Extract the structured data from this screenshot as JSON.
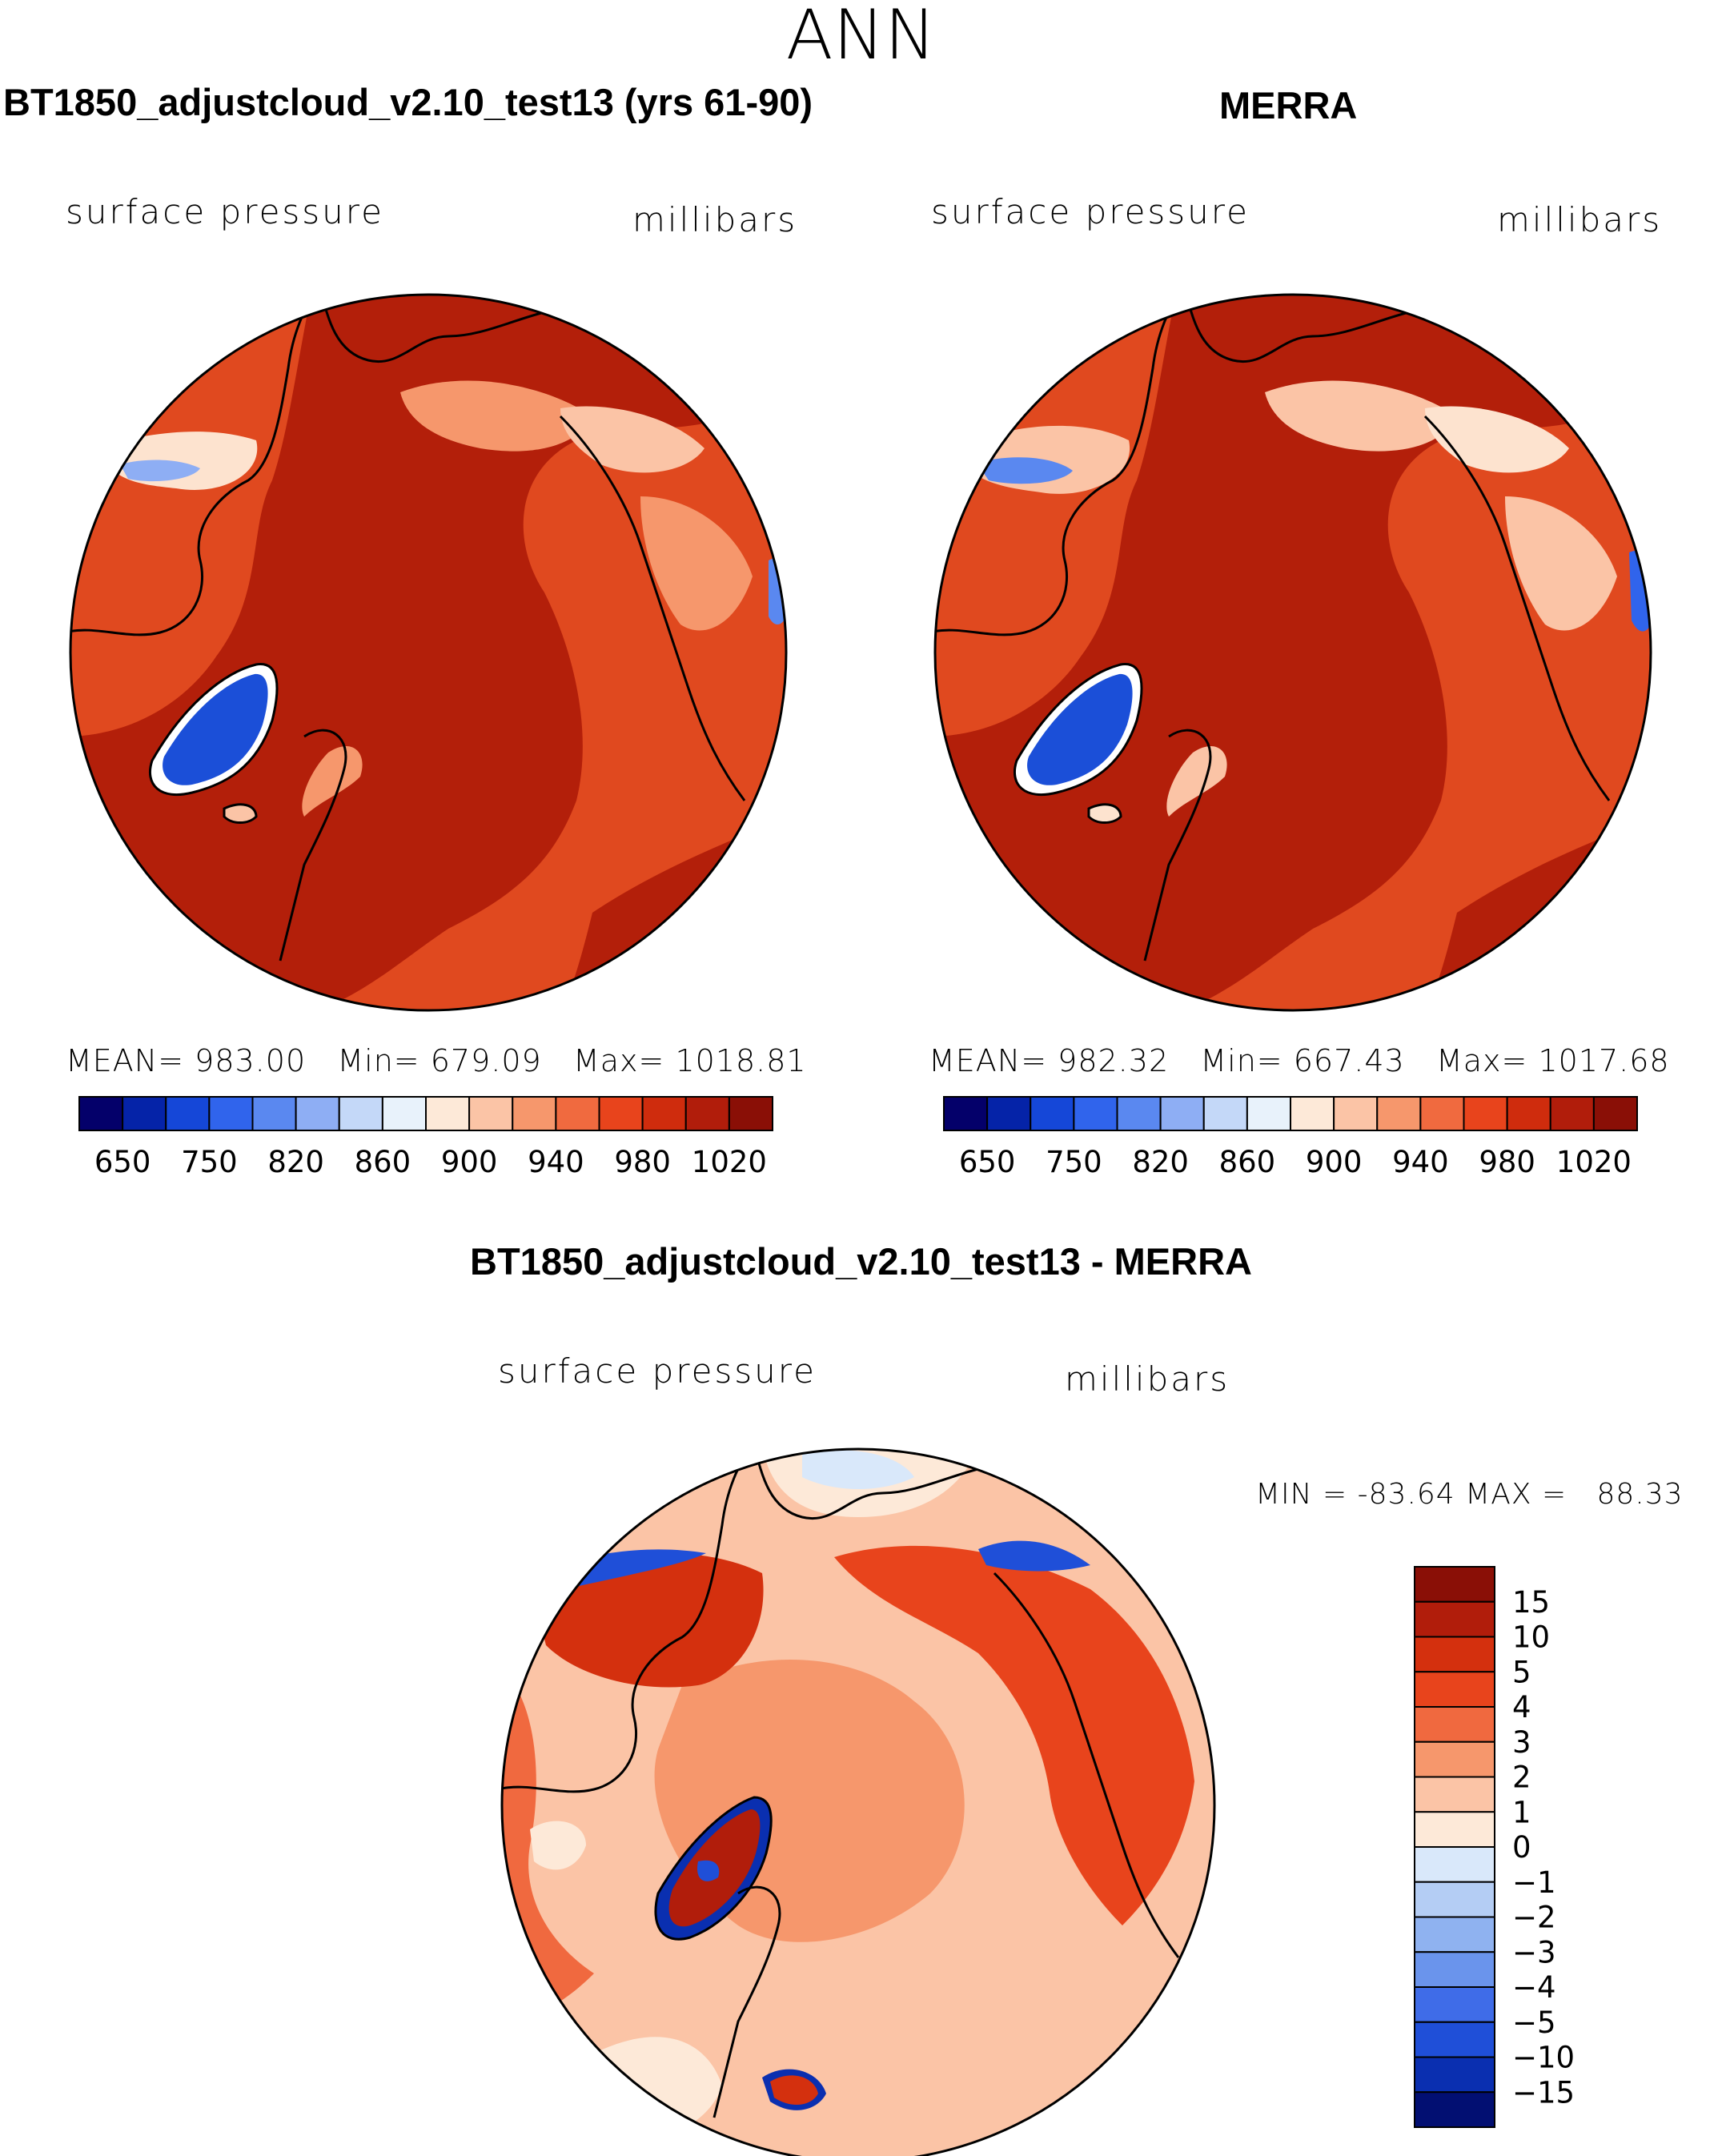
{
  "main_title": "ANN",
  "panels": [
    {
      "title": "BT1850_adjustcloud_v2.10_test13 (yrs 61-90)",
      "variable": "surface pressure",
      "units": "millibars",
      "stats": {
        "mean_label": "MEAN=",
        "mean": "983.00",
        "min_label": "Min=",
        "min": "679.09",
        "max_label": "Max=",
        "max": "1018.81"
      }
    },
    {
      "title": "MERRA",
      "variable": "surface pressure",
      "units": "millibars",
      "stats": {
        "mean_label": "MEAN=",
        "mean": "982.32",
        "min_label": "Min=",
        "min": "667.43",
        "max_label": "Max=",
        "max": "1017.68"
      }
    }
  ],
  "abs_colorbar": {
    "labels": [
      "650",
      "750",
      "820",
      "860",
      "900",
      "940",
      "980",
      "1020"
    ],
    "colors": [
      "#04006a",
      "#0523a8",
      "#1547d8",
      "#3064ec",
      "#5a88f0",
      "#8eaef4",
      "#c4d8f8",
      "#e8f2fb",
      "#fde9d8",
      "#fbc4a6",
      "#f6976c",
      "#f06a3f",
      "#e8441c",
      "#cf2c0d",
      "#b11d0b",
      "#8a0f06"
    ]
  },
  "diff_panel": {
    "title": "BT1850_adjustcloud_v2.10_test13 - MERRA",
    "variable": "surface pressure",
    "units": "millibars",
    "minmax_text": "MIN = -83.64 MAX =   88.33"
  },
  "diff_colorbar": {
    "labels": [
      "15",
      "10",
      "5",
      "4",
      "3",
      "2",
      "1",
      "0",
      "−1",
      "−2",
      "−3",
      "−4",
      "−5",
      "−10",
      "−15"
    ],
    "colors_top_to_bottom": [
      "#8a0f06",
      "#b11d0b",
      "#d4300e",
      "#e8441c",
      "#f0693f",
      "#f6976c",
      "#fbc4a6",
      "#fde9d8",
      "#d9e8fa",
      "#b4cdf4",
      "#8fb2f0",
      "#6a94ec",
      "#3f6ce8",
      "#1f4fd8",
      "#0a2fb0",
      "#020f72"
    ]
  },
  "colors": {
    "ocean_max": "#b31f0a",
    "land_main": "#e0491f",
    "greenland": "#1b4fd8"
  }
}
